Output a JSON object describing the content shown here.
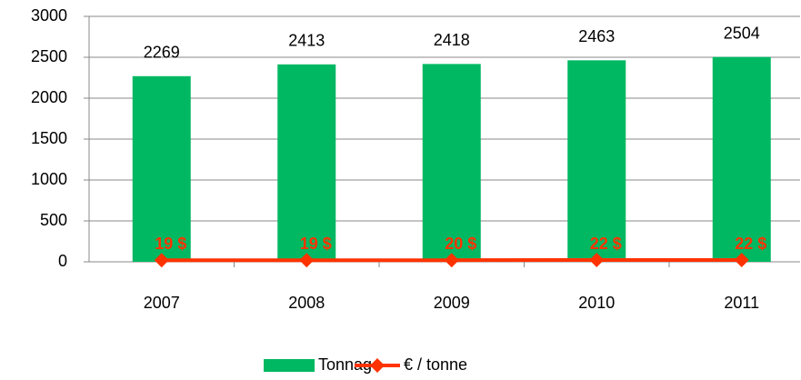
{
  "chart_data": {
    "type": "bar",
    "categories": [
      "2007",
      "2008",
      "2009",
      "2010",
      "2011"
    ],
    "series": [
      {
        "name": "Tonnage",
        "type": "bar",
        "color": "#00b862",
        "values": [
          2269,
          2413,
          2418,
          2463,
          2504
        ]
      },
      {
        "name": "€ / tonne",
        "type": "line",
        "color": "#ff3300",
        "values": [
          19,
          19,
          20,
          22,
          22
        ],
        "value_labels": [
          "19 $",
          "19 $",
          "20 $",
          "22 $",
          "22 $"
        ]
      }
    ],
    "ylim": [
      0,
      3000
    ],
    "yticks": [
      0,
      500,
      1000,
      1500,
      2000,
      2500,
      3000
    ],
    "grid": true,
    "legend": "bottom"
  }
}
